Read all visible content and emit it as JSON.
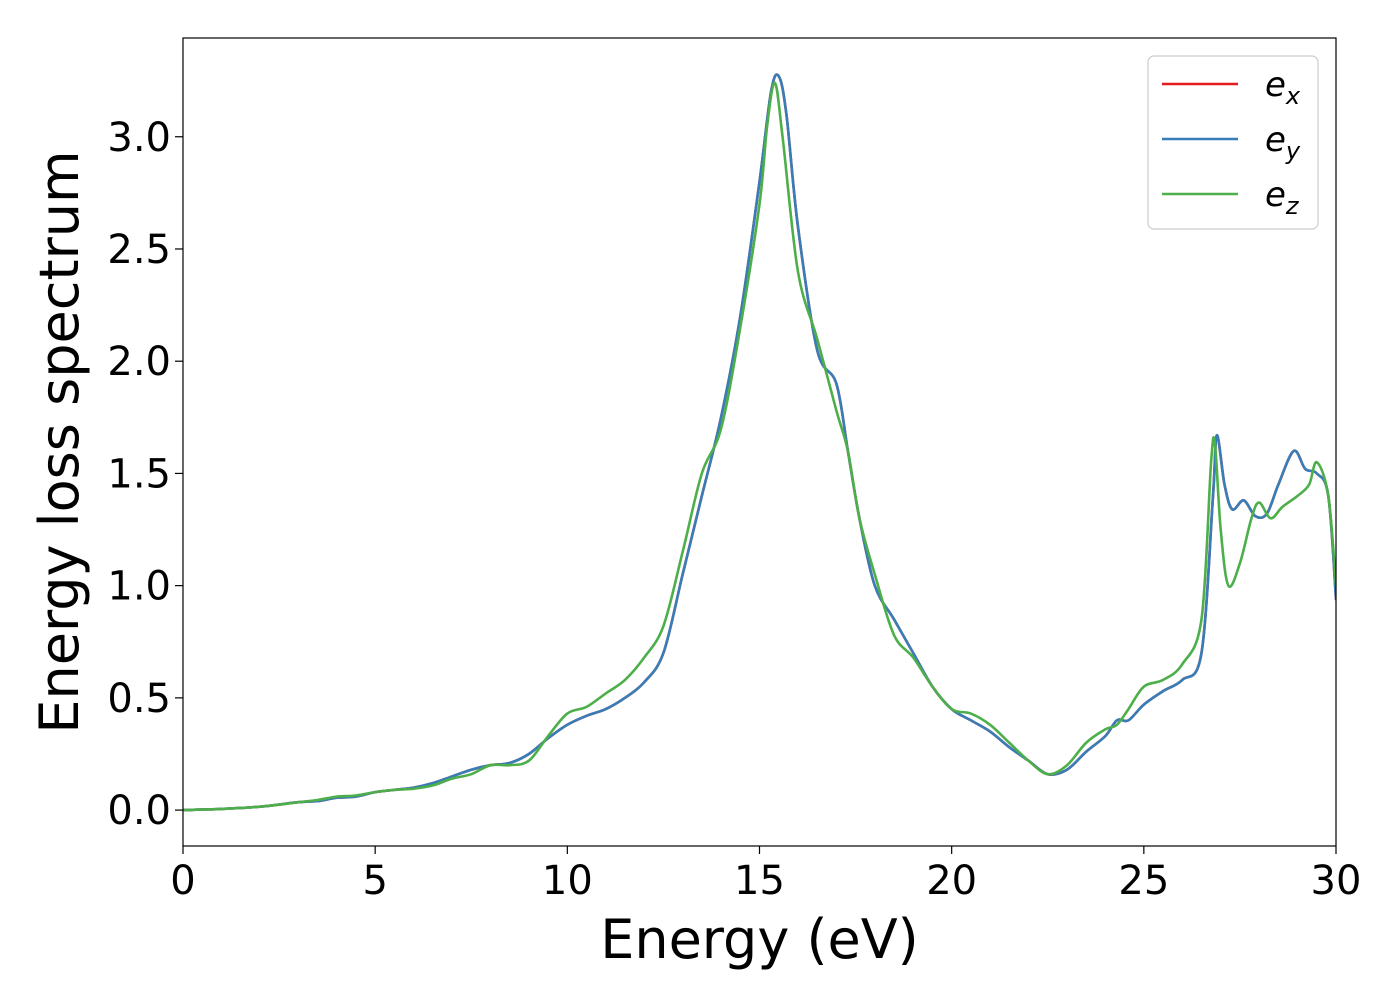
{
  "chart_data": {
    "type": "line",
    "title": "",
    "xlabel": "Energy (eV)",
    "ylabel": "Energy loss spectrum",
    "xlim": [
      0,
      30
    ],
    "ylim": [
      -0.16,
      3.44
    ],
    "xticks": [
      0,
      5,
      10,
      15,
      20,
      25,
      30
    ],
    "xtick_labels": [
      "0",
      "5",
      "10",
      "15",
      "20",
      "25",
      "30"
    ],
    "yticks": [
      0.0,
      0.5,
      1.0,
      1.5,
      2.0,
      2.5,
      3.0
    ],
    "ytick_labels": [
      "0.0",
      "0.5",
      "1.0",
      "1.5",
      "2.0",
      "2.5",
      "3.0"
    ],
    "grid": false,
    "legend_position": "top-right",
    "series": [
      {
        "name": "e_x",
        "legend_main": "e",
        "legend_sub": "x",
        "color": "#e41a1c",
        "x": [
          0,
          1,
          2,
          3,
          3.5,
          4,
          4.5,
          5,
          5.5,
          6,
          6.5,
          7,
          7.5,
          8,
          8.5,
          9,
          9.5,
          10,
          10.5,
          11,
          11.5,
          12,
          12.5,
          13,
          13.5,
          14,
          14.5,
          15,
          15.3,
          15.5,
          15.7,
          16,
          16.5,
          17,
          17.3,
          17.6,
          18,
          18.5,
          19,
          19.5,
          20,
          20.5,
          21,
          21.5,
          22,
          22.5,
          23,
          23.5,
          24,
          24.3,
          24.6,
          25,
          25.5,
          26,
          26.5,
          26.8,
          26.9,
          27.1,
          27.3,
          27.6,
          27.9,
          28.2,
          28.5,
          28.9,
          29.2,
          29.5,
          29.8,
          30
        ],
        "y": [
          0.0,
          0.005,
          0.015,
          0.035,
          0.04,
          0.055,
          0.06,
          0.08,
          0.09,
          0.1,
          0.12,
          0.15,
          0.18,
          0.2,
          0.21,
          0.25,
          0.32,
          0.38,
          0.42,
          0.45,
          0.5,
          0.57,
          0.7,
          1.05,
          1.4,
          1.75,
          2.2,
          2.8,
          3.2,
          3.27,
          3.1,
          2.6,
          2.05,
          1.9,
          1.6,
          1.3,
          1.0,
          0.85,
          0.7,
          0.55,
          0.45,
          0.4,
          0.35,
          0.28,
          0.22,
          0.16,
          0.18,
          0.26,
          0.33,
          0.4,
          0.4,
          0.47,
          0.53,
          0.58,
          0.7,
          1.4,
          1.67,
          1.45,
          1.34,
          1.38,
          1.31,
          1.32,
          1.45,
          1.6,
          1.52,
          1.5,
          1.4,
          0.94
        ]
      },
      {
        "name": "e_y",
        "legend_main": "e",
        "legend_sub": "y",
        "color": "#377eb8",
        "x": [
          0,
          1,
          2,
          3,
          3.5,
          4,
          4.5,
          5,
          5.5,
          6,
          6.5,
          7,
          7.5,
          8,
          8.5,
          9,
          9.5,
          10,
          10.5,
          11,
          11.5,
          12,
          12.5,
          13,
          13.5,
          14,
          14.5,
          15,
          15.3,
          15.5,
          15.7,
          16,
          16.5,
          17,
          17.3,
          17.6,
          18,
          18.5,
          19,
          19.5,
          20,
          20.5,
          21,
          21.5,
          22,
          22.5,
          23,
          23.5,
          24,
          24.3,
          24.6,
          25,
          25.5,
          26,
          26.5,
          26.8,
          26.9,
          27.1,
          27.3,
          27.6,
          27.9,
          28.2,
          28.5,
          28.9,
          29.2,
          29.5,
          29.8,
          30
        ],
        "y": [
          0.0,
          0.005,
          0.015,
          0.035,
          0.04,
          0.055,
          0.06,
          0.08,
          0.09,
          0.1,
          0.12,
          0.15,
          0.18,
          0.2,
          0.21,
          0.25,
          0.32,
          0.38,
          0.42,
          0.45,
          0.5,
          0.57,
          0.7,
          1.05,
          1.4,
          1.75,
          2.2,
          2.8,
          3.2,
          3.27,
          3.1,
          2.6,
          2.05,
          1.9,
          1.6,
          1.3,
          1.0,
          0.85,
          0.7,
          0.55,
          0.45,
          0.4,
          0.35,
          0.28,
          0.22,
          0.16,
          0.18,
          0.26,
          0.33,
          0.4,
          0.4,
          0.47,
          0.53,
          0.58,
          0.7,
          1.4,
          1.67,
          1.45,
          1.34,
          1.38,
          1.31,
          1.32,
          1.45,
          1.6,
          1.52,
          1.5,
          1.4,
          0.94
        ]
      },
      {
        "name": "e_z",
        "legend_main": "e",
        "legend_sub": "z",
        "color": "#4daf4a",
        "x": [
          0,
          1,
          2,
          3,
          3.5,
          4,
          4.5,
          5,
          5.5,
          6,
          6.5,
          7,
          7.5,
          8,
          8.5,
          9,
          9.5,
          10,
          10.5,
          11,
          11.5,
          12,
          12.5,
          13,
          13.5,
          14,
          14.5,
          15,
          15.2,
          15.4,
          15.6,
          16,
          16.5,
          17,
          17.3,
          17.6,
          18,
          18.5,
          19,
          19.5,
          20,
          20.5,
          21,
          21.5,
          22,
          22.5,
          23,
          23.5,
          24,
          24.3,
          24.6,
          25,
          25.5,
          26,
          26.5,
          26.75,
          26.85,
          27.0,
          27.2,
          27.5,
          27.8,
          28.0,
          28.3,
          28.6,
          29.0,
          29.3,
          29.5,
          29.8,
          30
        ],
        "y": [
          0.0,
          0.005,
          0.015,
          0.035,
          0.045,
          0.06,
          0.065,
          0.08,
          0.09,
          0.095,
          0.11,
          0.14,
          0.16,
          0.2,
          0.2,
          0.22,
          0.33,
          0.43,
          0.46,
          0.52,
          0.58,
          0.68,
          0.82,
          1.15,
          1.5,
          1.7,
          2.15,
          2.7,
          3.05,
          3.24,
          3.0,
          2.4,
          2.1,
          1.78,
          1.6,
          1.3,
          1.05,
          0.78,
          0.68,
          0.55,
          0.45,
          0.43,
          0.38,
          0.3,
          0.22,
          0.16,
          0.2,
          0.3,
          0.36,
          0.38,
          0.45,
          0.55,
          0.58,
          0.65,
          0.85,
          1.55,
          1.63,
          1.25,
          1.0,
          1.1,
          1.3,
          1.37,
          1.3,
          1.35,
          1.4,
          1.45,
          1.55,
          1.4,
          1.0
        ]
      }
    ]
  }
}
